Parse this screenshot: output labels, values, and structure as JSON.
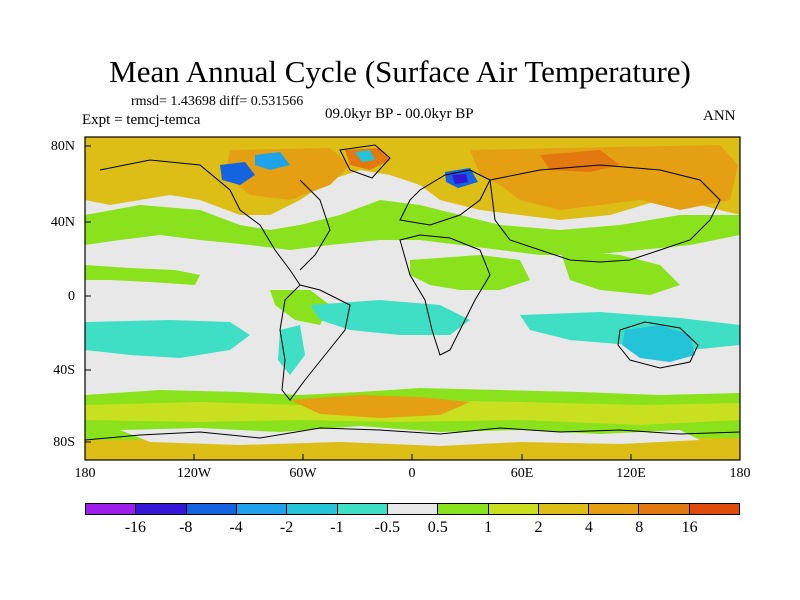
{
  "title": "Mean Annual Cycle (Surface Air Temperature)",
  "stats": "rmsd= 1.43698 diff= 0.531566",
  "experiment": "Expt = temcj-temca",
  "period": "09.0kyr BP - 00.0kyr BP",
  "season": "ANN",
  "lat_labels": [
    "80N",
    "40N",
    "0",
    "40S",
    "80S"
  ],
  "lon_labels": [
    "180",
    "120W",
    "60W",
    "0",
    "60E",
    "120E",
    "180"
  ],
  "colorbar": {
    "colors": [
      "#9b1fe8",
      "#3518d6",
      "#1463e0",
      "#1ea3ea",
      "#25c3d8",
      "#3fdfc6",
      "#e8e8e8",
      "#8ae21c",
      "#c8e020",
      "#dcbe16",
      "#e4a012",
      "#e2780e",
      "#e04a0a"
    ],
    "labels": [
      "-16",
      "-8",
      "-4",
      "-2",
      "-1",
      "-0.5",
      "0.5",
      "1",
      "2",
      "4",
      "8",
      "16"
    ]
  },
  "palette": {
    "neutral": "#e8e8e8",
    "warm_small": "#8ae21c",
    "warm_mid": "#c8e020",
    "warm": "#dcbe16",
    "warmer": "#e4a012",
    "hot": "#e2780e",
    "cool_small": "#3fdfc6",
    "cool": "#25c3d8",
    "cold": "#1ea3ea",
    "colder": "#1463e0",
    "coldest": "#3518d6"
  }
}
